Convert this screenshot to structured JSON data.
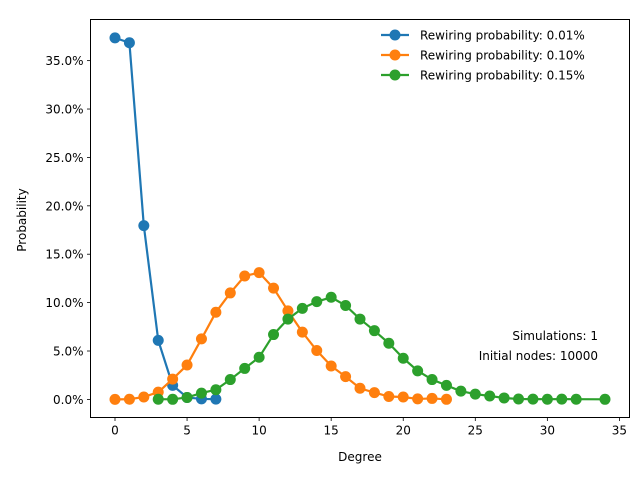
{
  "chart_data": {
    "type": "line",
    "xlabel": "Degree",
    "ylabel": "Probability",
    "xlim": [
      -1.7,
      35.7
    ],
    "ylim": [
      -0.0187,
      0.3925
    ],
    "xticks": [
      0,
      5,
      10,
      15,
      20,
      25,
      30,
      35
    ],
    "yticks": [
      0.0,
      0.05,
      0.1,
      0.15,
      0.2,
      0.25,
      0.3,
      0.35
    ],
    "ytick_labels": [
      "0.0%",
      "5.0%",
      "10.0%",
      "15.0%",
      "20.0%",
      "25.0%",
      "30.0%",
      "35.0%"
    ],
    "legend_position": "top-right",
    "series": [
      {
        "name": "Rewiring probability: 0.01%",
        "color": "#1f77b4",
        "x": [
          0,
          1,
          2,
          3,
          4,
          5,
          6,
          7
        ],
        "y": [
          0.3735,
          0.3685,
          0.1795,
          0.061,
          0.0145,
          0.002,
          0.0005,
          0.0003
        ]
      },
      {
        "name": "Rewiring probability: 0.10%",
        "color": "#ff7f0e",
        "x": [
          0,
          1,
          2,
          3,
          4,
          5,
          6,
          7,
          8,
          9,
          10,
          11,
          12,
          13,
          14,
          15,
          16,
          17,
          18,
          19,
          20,
          21,
          22,
          23
        ],
        "y": [
          0.0,
          0.0002,
          0.0025,
          0.0075,
          0.021,
          0.0355,
          0.0625,
          0.09,
          0.11,
          0.1275,
          0.131,
          0.115,
          0.0915,
          0.0695,
          0.0505,
          0.0345,
          0.0235,
          0.0115,
          0.007,
          0.003,
          0.0025,
          0.0005,
          0.001,
          0.0001
        ]
      },
      {
        "name": "Rewiring probability: 0.15%",
        "color": "#2ca02c",
        "x": [
          3,
          4,
          5,
          6,
          7,
          8,
          9,
          10,
          11,
          12,
          13,
          14,
          15,
          16,
          17,
          18,
          19,
          20,
          21,
          22,
          23,
          24,
          25,
          26,
          27,
          28,
          29,
          30,
          31,
          32,
          34
        ],
        "y": [
          0.0002,
          0.0001,
          0.002,
          0.0065,
          0.01,
          0.0205,
          0.032,
          0.0435,
          0.067,
          0.083,
          0.094,
          0.101,
          0.1055,
          0.097,
          0.083,
          0.071,
          0.058,
          0.0425,
          0.0295,
          0.0205,
          0.0145,
          0.0085,
          0.0055,
          0.0035,
          0.0015,
          0.0004,
          0.0003,
          0.0002,
          0.0003,
          0.0002,
          0.0001
        ]
      }
    ],
    "annotations": [
      "Simulations: 1",
      "Initial nodes: 10000"
    ]
  }
}
